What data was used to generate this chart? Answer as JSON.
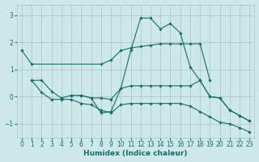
{
  "xlabel": "Humidex (Indice chaleur)",
  "xlim": [
    -0.5,
    23.5
  ],
  "ylim": [
    -1.5,
    3.4
  ],
  "bg_color": "#cce8e8",
  "grid_color": "#aacccc",
  "line_color": "#1a6b6b",
  "yticks": [
    -1,
    0,
    1,
    2,
    3
  ],
  "xticks": [
    0,
    1,
    2,
    3,
    4,
    5,
    6,
    7,
    8,
    9,
    10,
    11,
    12,
    13,
    14,
    15,
    16,
    17,
    18,
    19,
    20,
    21,
    22,
    23
  ],
  "lines": [
    {
      "x": [
        0,
        1,
        8,
        9,
        10,
        11,
        12,
        13,
        14,
        15,
        16,
        17,
        18,
        19
      ],
      "y": [
        1.7,
        1.2,
        1.2,
        1.35,
        1.7,
        1.8,
        1.85,
        1.9,
        1.95,
        1.95,
        1.95,
        1.95,
        1.95,
        0.6
      ]
    },
    {
      "x": [
        1,
        2,
        3,
        4,
        5,
        6,
        7,
        8,
        9,
        10,
        11,
        12,
        13,
        14,
        15,
        16,
        17,
        18,
        19,
        20,
        21,
        22,
        23
      ],
      "y": [
        0.6,
        0.6,
        0.2,
        -0.05,
        0.05,
        0.05,
        -0.05,
        -0.05,
        -0.1,
        0.3,
        0.4,
        0.4,
        0.4,
        0.4,
        0.4,
        0.4,
        0.4,
        0.6,
        0.0,
        -0.05,
        -0.5,
        -0.7,
        -0.9
      ]
    },
    {
      "x": [
        5,
        6,
        7,
        8,
        9,
        10,
        11,
        12,
        13,
        14,
        15,
        16,
        17,
        18,
        19,
        20,
        21,
        22,
        23
      ],
      "y": [
        0.05,
        0.05,
        -0.05,
        -0.6,
        -0.55,
        0.3,
        1.7,
        2.9,
        2.9,
        2.5,
        2.7,
        2.35,
        1.1,
        0.6,
        0.0,
        -0.05,
        -0.5,
        -0.7,
        -0.9
      ]
    },
    {
      "x": [
        1,
        2,
        3,
        4,
        5,
        6,
        7,
        8,
        9,
        10,
        11,
        12,
        13,
        14,
        15,
        16,
        17,
        18,
        19,
        20,
        21,
        22,
        23
      ],
      "y": [
        0.6,
        0.15,
        -0.1,
        -0.1,
        -0.1,
        -0.25,
        -0.3,
        -0.5,
        -0.6,
        -0.3,
        -0.25,
        -0.25,
        -0.25,
        -0.25,
        -0.25,
        -0.25,
        -0.35,
        -0.55,
        -0.75,
        -0.95,
        -1.0,
        -1.15,
        -1.3
      ]
    }
  ]
}
